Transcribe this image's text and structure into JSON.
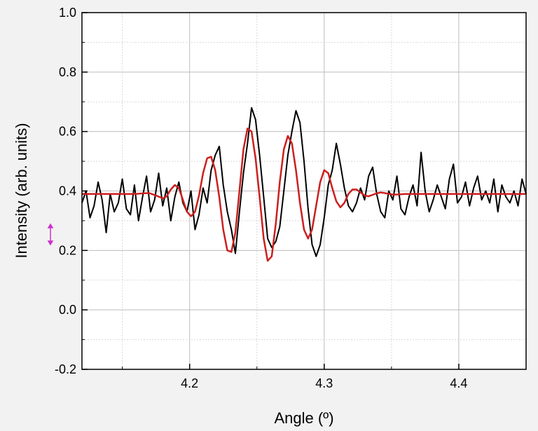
{
  "chart_data": {
    "type": "line",
    "xlabel": "Angle (º)",
    "ylabel": "Intensity (arb. units)",
    "xlim": [
      4.12,
      4.45
    ],
    "ylim": [
      -0.2,
      1.0
    ],
    "x_ticks": [
      {
        "value": 4.2,
        "label": "4.2"
      },
      {
        "value": 4.3,
        "label": "4.3"
      },
      {
        "value": 4.4,
        "label": "4.4"
      }
    ],
    "y_ticks": [
      {
        "value": -0.2,
        "label": "-0.2"
      },
      {
        "value": 0.0,
        "label": "0.0"
      },
      {
        "value": 0.2,
        "label": "0.2"
      },
      {
        "value": 0.4,
        "label": "0.4"
      },
      {
        "value": 0.6,
        "label": "0.6"
      },
      {
        "value": 0.8,
        "label": "0.8"
      },
      {
        "value": 1.0,
        "label": "1.0"
      }
    ],
    "grid": true,
    "series": [
      {
        "color": "#000000",
        "x": [
          4.12,
          4.123,
          4.126,
          4.129,
          4.132,
          4.135,
          4.138,
          4.141,
          4.144,
          4.147,
          4.15,
          4.153,
          4.156,
          4.159,
          4.162,
          4.165,
          4.168,
          4.171,
          4.174,
          4.177,
          4.18,
          4.183,
          4.186,
          4.189,
          4.192,
          4.195,
          4.198,
          4.201,
          4.204,
          4.207,
          4.21,
          4.213,
          4.216,
          4.219,
          4.222,
          4.225,
          4.228,
          4.231,
          4.234,
          4.237,
          4.24,
          4.243,
          4.246,
          4.249,
          4.252,
          4.255,
          4.258,
          4.261,
          4.264,
          4.267,
          4.27,
          4.273,
          4.276,
          4.279,
          4.282,
          4.285,
          4.288,
          4.291,
          4.294,
          4.297,
          4.3,
          4.303,
          4.306,
          4.309,
          4.312,
          4.315,
          4.318,
          4.321,
          4.324,
          4.327,
          4.33,
          4.333,
          4.336,
          4.339,
          4.342,
          4.345,
          4.348,
          4.351,
          4.354,
          4.357,
          4.36,
          4.363,
          4.366,
          4.369,
          4.372,
          4.375,
          4.378,
          4.381,
          4.384,
          4.387,
          4.39,
          4.393,
          4.396,
          4.399,
          4.402,
          4.405,
          4.408,
          4.411,
          4.414,
          4.417,
          4.42,
          4.423,
          4.426,
          4.429,
          4.432,
          4.435,
          4.438,
          4.441,
          4.444,
          4.447,
          4.45
        ],
        "y": [
          0.36,
          0.4,
          0.31,
          0.35,
          0.43,
          0.37,
          0.26,
          0.39,
          0.33,
          0.36,
          0.44,
          0.34,
          0.32,
          0.42,
          0.3,
          0.38,
          0.45,
          0.33,
          0.37,
          0.46,
          0.35,
          0.41,
          0.3,
          0.38,
          0.43,
          0.36,
          0.33,
          0.4,
          0.27,
          0.32,
          0.41,
          0.36,
          0.47,
          0.52,
          0.55,
          0.42,
          0.33,
          0.27,
          0.19,
          0.33,
          0.46,
          0.56,
          0.68,
          0.64,
          0.52,
          0.38,
          0.24,
          0.21,
          0.23,
          0.28,
          0.4,
          0.52,
          0.6,
          0.67,
          0.63,
          0.5,
          0.34,
          0.22,
          0.18,
          0.22,
          0.31,
          0.42,
          0.47,
          0.56,
          0.49,
          0.41,
          0.35,
          0.33,
          0.36,
          0.41,
          0.37,
          0.45,
          0.48,
          0.39,
          0.33,
          0.31,
          0.4,
          0.37,
          0.45,
          0.34,
          0.32,
          0.38,
          0.42,
          0.35,
          0.53,
          0.4,
          0.33,
          0.37,
          0.42,
          0.38,
          0.34,
          0.44,
          0.49,
          0.36,
          0.38,
          0.43,
          0.35,
          0.41,
          0.45,
          0.37,
          0.4,
          0.36,
          0.44,
          0.33,
          0.42,
          0.38,
          0.36,
          0.4,
          0.35,
          0.44,
          0.39
        ]
      },
      {
        "color": "#cc1f1f",
        "x": [
          4.12,
          4.125,
          4.13,
          4.135,
          4.14,
          4.145,
          4.15,
          4.155,
          4.16,
          4.165,
          4.17,
          4.175,
          4.18,
          4.183,
          4.186,
          4.189,
          4.192,
          4.195,
          4.198,
          4.201,
          4.204,
          4.207,
          4.21,
          4.213,
          4.216,
          4.219,
          4.222,
          4.225,
          4.228,
          4.231,
          4.234,
          4.237,
          4.24,
          4.243,
          4.246,
          4.249,
          4.252,
          4.255,
          4.258,
          4.261,
          4.264,
          4.267,
          4.27,
          4.273,
          4.276,
          4.279,
          4.282,
          4.285,
          4.288,
          4.291,
          4.294,
          4.297,
          4.3,
          4.303,
          4.306,
          4.309,
          4.312,
          4.315,
          4.318,
          4.321,
          4.324,
          4.327,
          4.33,
          4.333,
          4.336,
          4.339,
          4.342,
          4.345,
          4.348,
          4.351,
          4.354,
          4.357,
          4.36,
          4.365,
          4.37,
          4.375,
          4.38,
          4.385,
          4.39,
          4.395,
          4.4,
          4.405,
          4.41,
          4.415,
          4.42,
          4.425,
          4.43,
          4.435,
          4.44,
          4.445,
          4.45
        ],
        "y": [
          0.39,
          0.39,
          0.39,
          0.39,
          0.39,
          0.39,
          0.39,
          0.39,
          0.39,
          0.392,
          0.393,
          0.385,
          0.375,
          0.382,
          0.405,
          0.42,
          0.41,
          0.37,
          0.33,
          0.315,
          0.33,
          0.385,
          0.46,
          0.51,
          0.515,
          0.47,
          0.38,
          0.27,
          0.2,
          0.195,
          0.26,
          0.4,
          0.54,
          0.61,
          0.6,
          0.51,
          0.38,
          0.24,
          0.165,
          0.18,
          0.29,
          0.43,
          0.54,
          0.585,
          0.56,
          0.47,
          0.36,
          0.27,
          0.24,
          0.27,
          0.35,
          0.43,
          0.47,
          0.46,
          0.41,
          0.365,
          0.345,
          0.36,
          0.39,
          0.405,
          0.405,
          0.395,
          0.385,
          0.382,
          0.387,
          0.392,
          0.395,
          0.393,
          0.39,
          0.388,
          0.388,
          0.389,
          0.39,
          0.39,
          0.39,
          0.39,
          0.39,
          0.39,
          0.39,
          0.39,
          0.39,
          0.39,
          0.39,
          0.39,
          0.39,
          0.39,
          0.39,
          0.39,
          0.39,
          0.39,
          0.39
        ]
      }
    ]
  }
}
